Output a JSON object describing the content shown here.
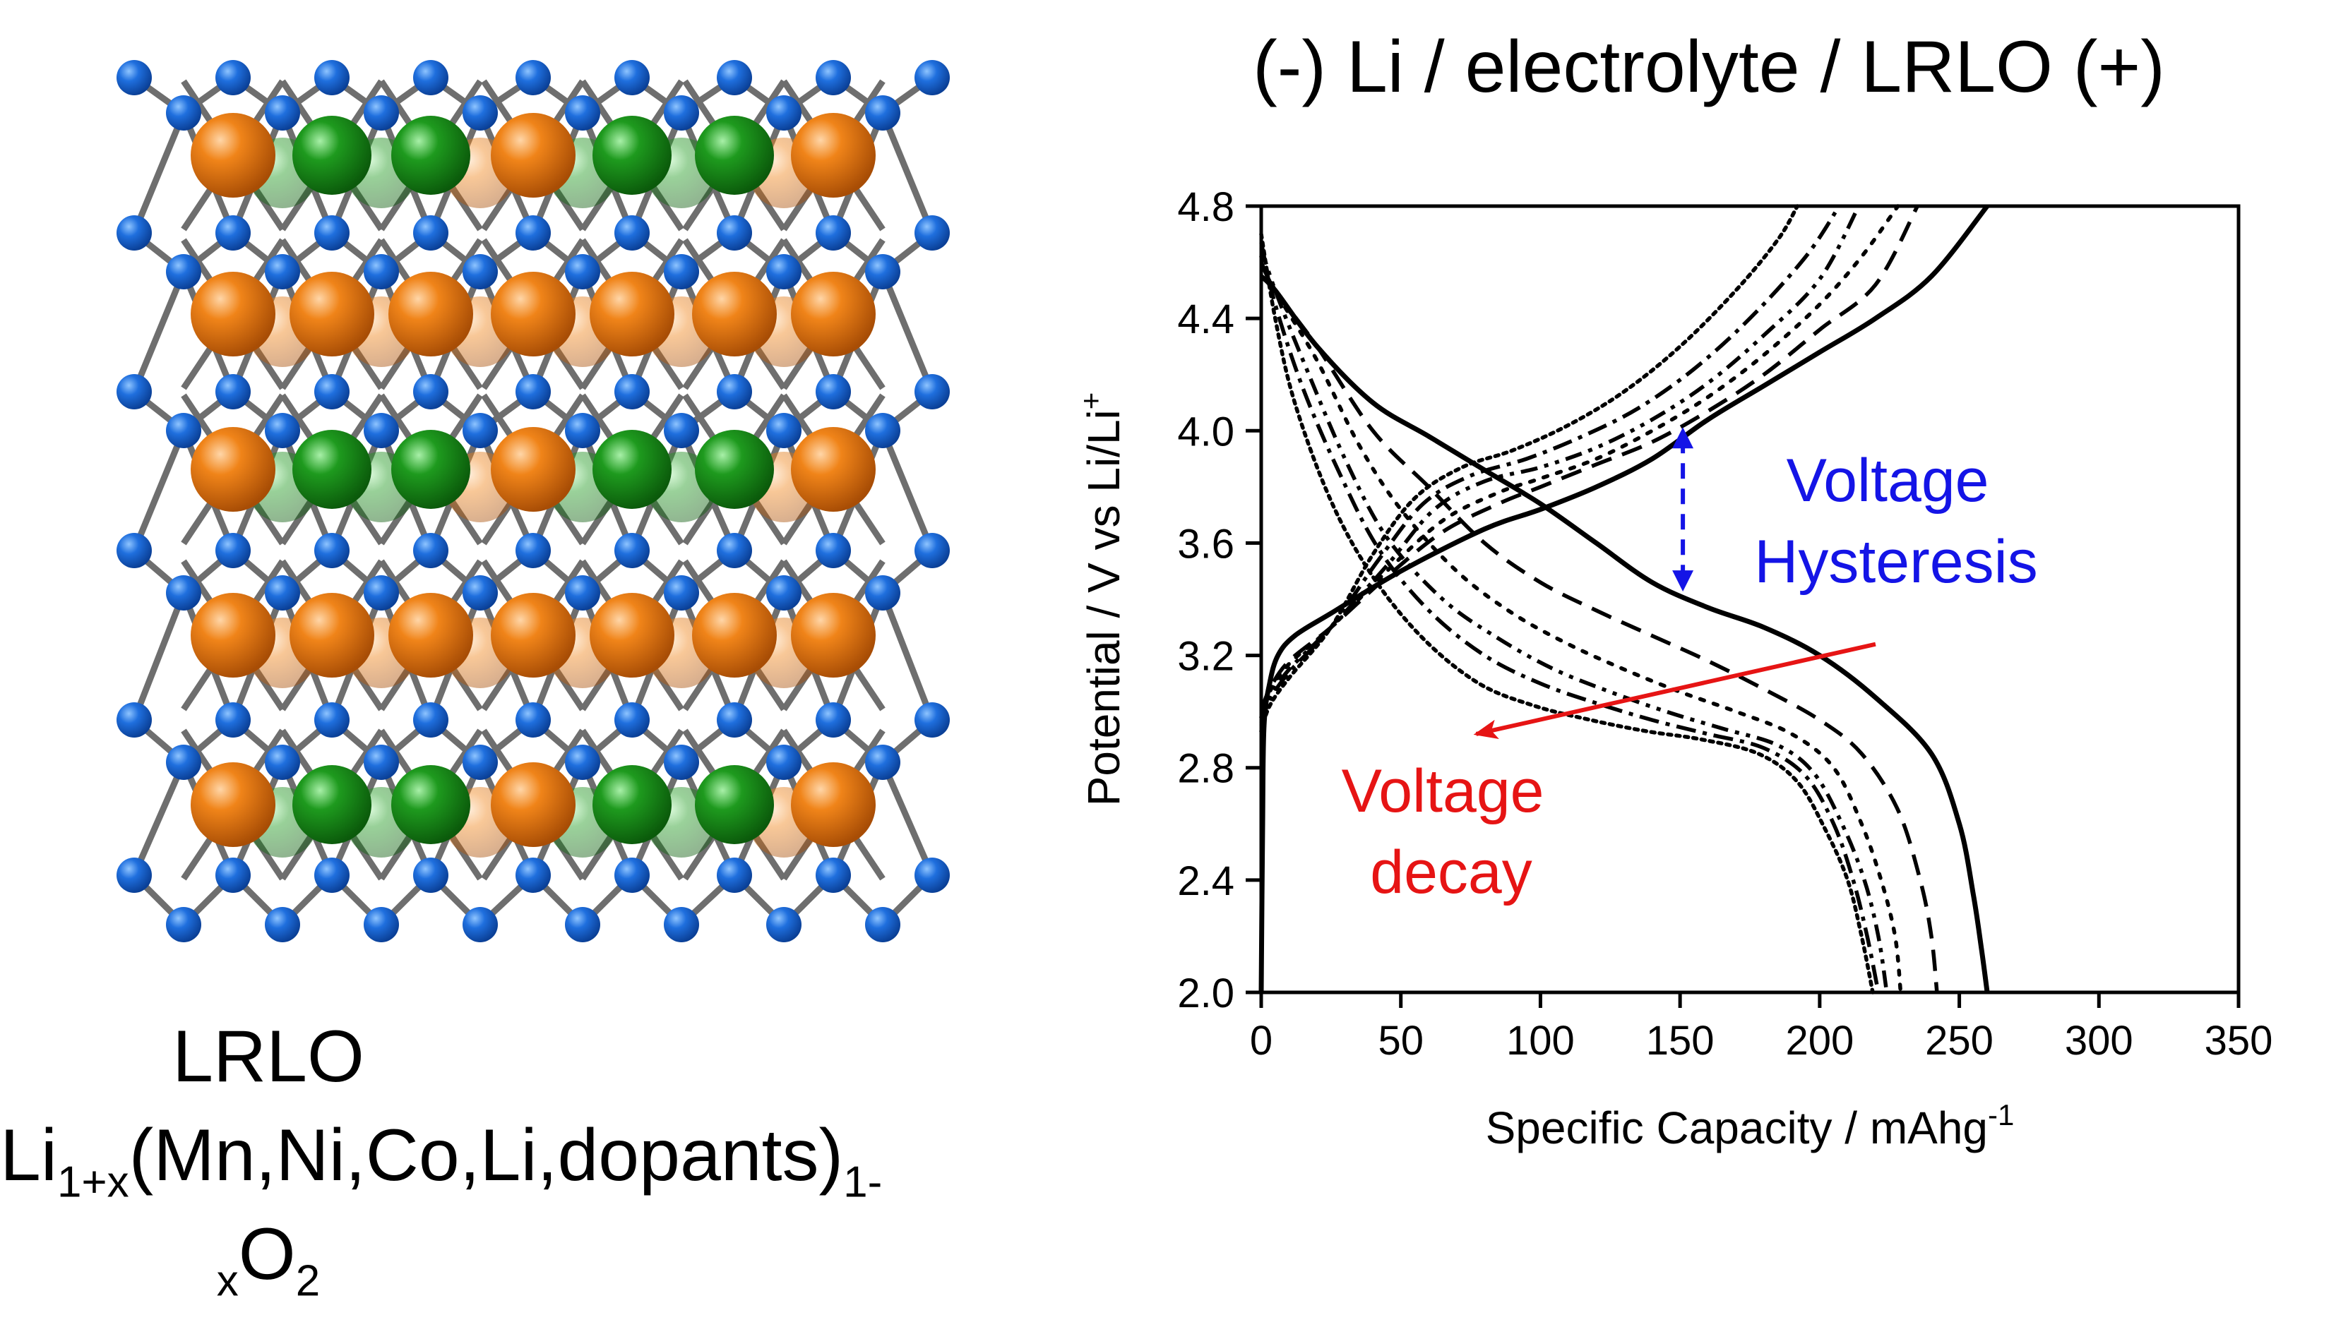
{
  "structure_panel": {
    "name": "LRLO",
    "formula_parts": [
      "Li",
      "1+x",
      "(Mn,Ni,Co,Li,dopants)",
      "1-",
      "x",
      "O",
      "2"
    ],
    "atom_colors": {
      "oxygen": "#1565d8",
      "orange_cation": "#ee7a13",
      "green_cation": "#1e9a1e",
      "bond": "#6e6e6e"
    }
  },
  "chart_data": {
    "type": "line",
    "title": "(-) Li / electrolyte / LRLO (+)",
    "xlabel": "Specific Capacity / mAhg",
    "xlabel_sup": "-1",
    "ylabel": "Potential / V vs Li/Li",
    "ylabel_sup": "+",
    "xlim": [
      0,
      350
    ],
    "ylim": [
      2.0,
      4.8
    ],
    "xticks": [
      "0",
      "50",
      "100",
      "150",
      "200",
      "250",
      "300",
      "350"
    ],
    "yticks": [
      "2.0",
      "2.4",
      "2.8",
      "3.2",
      "3.6",
      "4.0",
      "4.4",
      "4.8"
    ],
    "grid": false,
    "series": [
      {
        "style": "solid",
        "charge": [
          [
            0,
            2.0
          ],
          [
            0.5,
            2.6
          ],
          [
            1,
            2.95
          ],
          [
            3,
            3.1
          ],
          [
            6,
            3.2
          ],
          [
            12,
            3.27
          ],
          [
            25,
            3.35
          ],
          [
            50,
            3.5
          ],
          [
            80,
            3.65
          ],
          [
            100,
            3.72
          ],
          [
            120,
            3.8
          ],
          [
            140,
            3.9
          ],
          [
            160,
            4.04
          ],
          [
            180,
            4.16
          ],
          [
            200,
            4.28
          ],
          [
            220,
            4.4
          ],
          [
            240,
            4.55
          ],
          [
            260,
            4.8
          ]
        ],
        "discharge": [
          [
            0,
            4.55
          ],
          [
            5,
            4.5
          ],
          [
            20,
            4.3
          ],
          [
            40,
            4.1
          ],
          [
            60,
            3.98
          ],
          [
            80,
            3.86
          ],
          [
            100,
            3.74
          ],
          [
            120,
            3.6
          ],
          [
            140,
            3.46
          ],
          [
            160,
            3.37
          ],
          [
            180,
            3.3
          ],
          [
            200,
            3.2
          ],
          [
            220,
            3.05
          ],
          [
            240,
            2.85
          ],
          [
            250,
            2.6
          ],
          [
            255,
            2.35
          ],
          [
            258,
            2.15
          ],
          [
            260,
            2.0
          ]
        ]
      },
      {
        "style": "dashed",
        "charge": [
          [
            0,
            3.0
          ],
          [
            3,
            3.08
          ],
          [
            10,
            3.18
          ],
          [
            25,
            3.3
          ],
          [
            45,
            3.48
          ],
          [
            65,
            3.64
          ],
          [
            85,
            3.74
          ],
          [
            100,
            3.8
          ],
          [
            120,
            3.88
          ],
          [
            140,
            3.96
          ],
          [
            160,
            4.07
          ],
          [
            180,
            4.2
          ],
          [
            200,
            4.36
          ],
          [
            220,
            4.52
          ],
          [
            235,
            4.8
          ]
        ],
        "discharge": [
          [
            0,
            4.6
          ],
          [
            5,
            4.5
          ],
          [
            20,
            4.3
          ],
          [
            40,
            4.0
          ],
          [
            60,
            3.8
          ],
          [
            80,
            3.6
          ],
          [
            100,
            3.46
          ],
          [
            120,
            3.36
          ],
          [
            140,
            3.27
          ],
          [
            160,
            3.18
          ],
          [
            180,
            3.08
          ],
          [
            200,
            2.97
          ],
          [
            215,
            2.85
          ],
          [
            228,
            2.65
          ],
          [
            236,
            2.4
          ],
          [
            240,
            2.2
          ],
          [
            242,
            2.0
          ]
        ]
      },
      {
        "style": "dotted-sparse",
        "charge": [
          [
            0,
            2.98
          ],
          [
            3,
            3.07
          ],
          [
            10,
            3.17
          ],
          [
            25,
            3.3
          ],
          [
            45,
            3.5
          ],
          [
            65,
            3.68
          ],
          [
            85,
            3.78
          ],
          [
            100,
            3.83
          ],
          [
            120,
            3.9
          ],
          [
            140,
            4.0
          ],
          [
            160,
            4.12
          ],
          [
            180,
            4.27
          ],
          [
            200,
            4.45
          ],
          [
            215,
            4.62
          ],
          [
            228,
            4.8
          ]
        ],
        "discharge": [
          [
            0,
            4.62
          ],
          [
            5,
            4.5
          ],
          [
            20,
            4.25
          ],
          [
            35,
            3.95
          ],
          [
            50,
            3.72
          ],
          [
            70,
            3.5
          ],
          [
            90,
            3.35
          ],
          [
            110,
            3.24
          ],
          [
            130,
            3.15
          ],
          [
            150,
            3.07
          ],
          [
            170,
            3.0
          ],
          [
            190,
            2.92
          ],
          [
            205,
            2.8
          ],
          [
            215,
            2.6
          ],
          [
            222,
            2.4
          ],
          [
            227,
            2.2
          ],
          [
            229,
            2.0
          ]
        ]
      },
      {
        "style": "dash-dot-dot",
        "charge": [
          [
            0,
            2.96
          ],
          [
            3,
            3.05
          ],
          [
            10,
            3.15
          ],
          [
            25,
            3.3
          ],
          [
            45,
            3.52
          ],
          [
            62,
            3.72
          ],
          [
            80,
            3.82
          ],
          [
            100,
            3.87
          ],
          [
            120,
            3.94
          ],
          [
            140,
            4.04
          ],
          [
            160,
            4.17
          ],
          [
            180,
            4.34
          ],
          [
            200,
            4.54
          ],
          [
            214,
            4.8
          ]
        ],
        "discharge": [
          [
            0,
            4.65
          ],
          [
            5,
            4.5
          ],
          [
            15,
            4.25
          ],
          [
            30,
            3.9
          ],
          [
            45,
            3.62
          ],
          [
            65,
            3.4
          ],
          [
            85,
            3.26
          ],
          [
            105,
            3.15
          ],
          [
            125,
            3.07
          ],
          [
            145,
            3.0
          ],
          [
            165,
            2.94
          ],
          [
            185,
            2.88
          ],
          [
            198,
            2.78
          ],
          [
            208,
            2.6
          ],
          [
            216,
            2.4
          ],
          [
            221,
            2.2
          ],
          [
            224,
            2.0
          ]
        ]
      },
      {
        "style": "dash-dot",
        "charge": [
          [
            0,
            2.95
          ],
          [
            3,
            3.04
          ],
          [
            10,
            3.14
          ],
          [
            25,
            3.3
          ],
          [
            42,
            3.54
          ],
          [
            58,
            3.74
          ],
          [
            75,
            3.84
          ],
          [
            95,
            3.9
          ],
          [
            115,
            3.98
          ],
          [
            135,
            4.08
          ],
          [
            155,
            4.22
          ],
          [
            175,
            4.4
          ],
          [
            195,
            4.62
          ],
          [
            207,
            4.8
          ]
        ],
        "discharge": [
          [
            0,
            4.67
          ],
          [
            5,
            4.45
          ],
          [
            15,
            4.15
          ],
          [
            28,
            3.85
          ],
          [
            42,
            3.58
          ],
          [
            60,
            3.36
          ],
          [
            80,
            3.2
          ],
          [
            100,
            3.1
          ],
          [
            120,
            3.03
          ],
          [
            140,
            2.97
          ],
          [
            160,
            2.92
          ],
          [
            180,
            2.87
          ],
          [
            195,
            2.77
          ],
          [
            205,
            2.6
          ],
          [
            212,
            2.4
          ],
          [
            217,
            2.2
          ],
          [
            221,
            2.0
          ]
        ]
      },
      {
        "style": "dotted-dense",
        "charge": [
          [
            0,
            2.93
          ],
          [
            3,
            3.02
          ],
          [
            10,
            3.12
          ],
          [
            25,
            3.3
          ],
          [
            40,
            3.56
          ],
          [
            55,
            3.76
          ],
          [
            72,
            3.87
          ],
          [
            90,
            3.93
          ],
          [
            110,
            4.02
          ],
          [
            130,
            4.14
          ],
          [
            150,
            4.3
          ],
          [
            170,
            4.5
          ],
          [
            185,
            4.68
          ],
          [
            192,
            4.8
          ]
        ],
        "discharge": [
          [
            0,
            4.7
          ],
          [
            5,
            4.4
          ],
          [
            12,
            4.1
          ],
          [
            25,
            3.75
          ],
          [
            40,
            3.48
          ],
          [
            58,
            3.26
          ],
          [
            78,
            3.1
          ],
          [
            98,
            3.02
          ],
          [
            118,
            2.97
          ],
          [
            138,
            2.93
          ],
          [
            158,
            2.9
          ],
          [
            178,
            2.85
          ],
          [
            192,
            2.75
          ],
          [
            202,
            2.58
          ],
          [
            210,
            2.4
          ],
          [
            215,
            2.2
          ],
          [
            219,
            2.0
          ]
        ]
      }
    ],
    "annotations": {
      "hysteresis": {
        "lines": [
          "Voltage",
          "Hysteresis"
        ],
        "color": "#1414e6",
        "arrow": {
          "x": 151,
          "y_from": 4.0,
          "y_to": 3.44
        }
      },
      "decay": {
        "lines": [
          "Voltage",
          "decay"
        ],
        "color": "#e61414",
        "arrow": {
          "from": [
            220,
            3.24
          ],
          "to": [
            77,
            2.92
          ]
        }
      }
    }
  }
}
